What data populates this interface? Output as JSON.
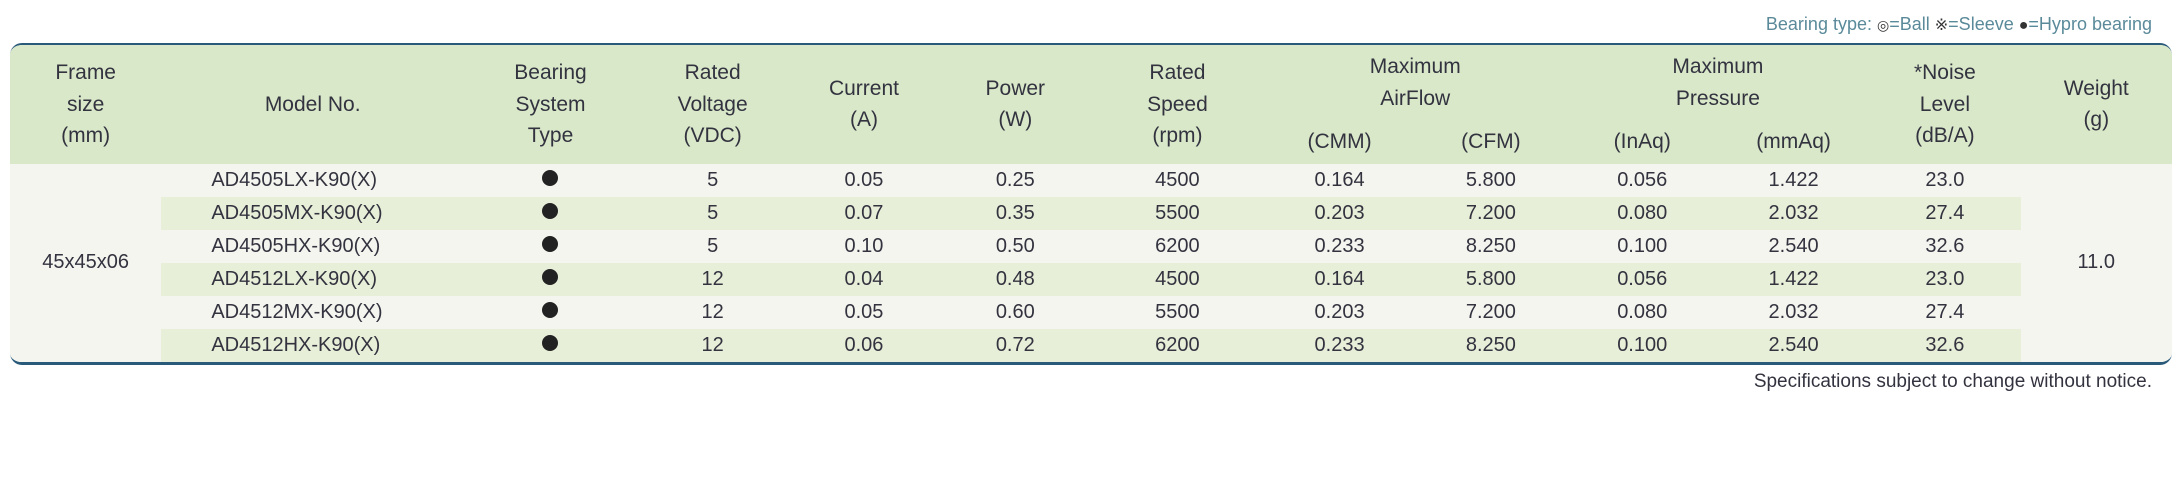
{
  "legend": {
    "prefix": "Bearing type:",
    "items": [
      {
        "symbol": "◎",
        "label": "=Ball"
      },
      {
        "symbol": "※",
        "label": "=Sleeve"
      },
      {
        "symbol": "●",
        "label": "=Hypro bearing"
      }
    ]
  },
  "headers": {
    "frame": {
      "l1": "Frame",
      "l2": "size",
      "l3": "(mm)"
    },
    "model": {
      "l1": "",
      "l2": "Model No.",
      "l3": ""
    },
    "bearing": {
      "l1": "Bearing",
      "l2": "System",
      "l3": "Type"
    },
    "voltage": {
      "l1": "Rated",
      "l2": "Voltage",
      "l3": "(VDC)"
    },
    "current": {
      "l1": "",
      "l2": "Current",
      "l3": "(A)"
    },
    "power": {
      "l1": "",
      "l2": "Power",
      "l3": "(W)"
    },
    "speed": {
      "l1": "Rated",
      "l2": "Speed",
      "l3": "(rpm)"
    },
    "airflow": {
      "l1": "Maximum",
      "l2": "AirFlow",
      "cmm": "(CMM)",
      "cfm": "(CFM)"
    },
    "pressure": {
      "l1": "Maximum",
      "l2": "Pressure",
      "inaq": "(InAq)",
      "mmaq": "(mmAq)"
    },
    "noise": {
      "l1": "*Noise",
      "l2": "Level",
      "l3": "(dB/A)"
    },
    "weight": {
      "l1": "",
      "l2": "Weight",
      "l3": "(g)"
    }
  },
  "frame_size": "45x45x06",
  "weight": "11.0",
  "rows": [
    {
      "model": "AD4505LX-K90(X)",
      "bearing": "hypro",
      "voltage": "5",
      "current": "0.05",
      "power": "0.25",
      "speed": "4500",
      "cmm": "0.164",
      "cfm": "5.800",
      "inaq": "0.056",
      "mmaq": "1.422",
      "noise": "23.0"
    },
    {
      "model": "AD4505MX-K90(X)",
      "bearing": "hypro",
      "voltage": "5",
      "current": "0.07",
      "power": "0.35",
      "speed": "5500",
      "cmm": "0.203",
      "cfm": "7.200",
      "inaq": "0.080",
      "mmaq": "2.032",
      "noise": "27.4"
    },
    {
      "model": "AD4505HX-K90(X)",
      "bearing": "hypro",
      "voltage": "5",
      "current": "0.10",
      "power": "0.50",
      "speed": "6200",
      "cmm": "0.233",
      "cfm": "8.250",
      "inaq": "0.100",
      "mmaq": "2.540",
      "noise": "32.6"
    },
    {
      "model": "AD4512LX-K90(X)",
      "bearing": "hypro",
      "voltage": "12",
      "current": "0.04",
      "power": "0.48",
      "speed": "4500",
      "cmm": "0.164",
      "cfm": "5.800",
      "inaq": "0.056",
      "mmaq": "1.422",
      "noise": "23.0"
    },
    {
      "model": "AD4512MX-K90(X)",
      "bearing": "hypro",
      "voltage": "12",
      "current": "0.05",
      "power": "0.60",
      "speed": "5500",
      "cmm": "0.203",
      "cfm": "7.200",
      "inaq": "0.080",
      "mmaq": "2.032",
      "noise": "27.4"
    },
    {
      "model": "AD4512HX-K90(X)",
      "bearing": "hypro",
      "voltage": "12",
      "current": "0.06",
      "power": "0.72",
      "speed": "6200",
      "cmm": "0.233",
      "cfm": "8.250",
      "inaq": "0.100",
      "mmaq": "2.540",
      "noise": "32.6"
    }
  ],
  "footer": "Specifications subject to change without notice.",
  "colors": {
    "header_bg": "#d9e8c9",
    "row_bg": "#f5f5ef",
    "row_alt_bg": "#e8efd8",
    "border": "#2a5a7a",
    "legend_text": "#5a8a9a",
    "text": "#333340"
  }
}
